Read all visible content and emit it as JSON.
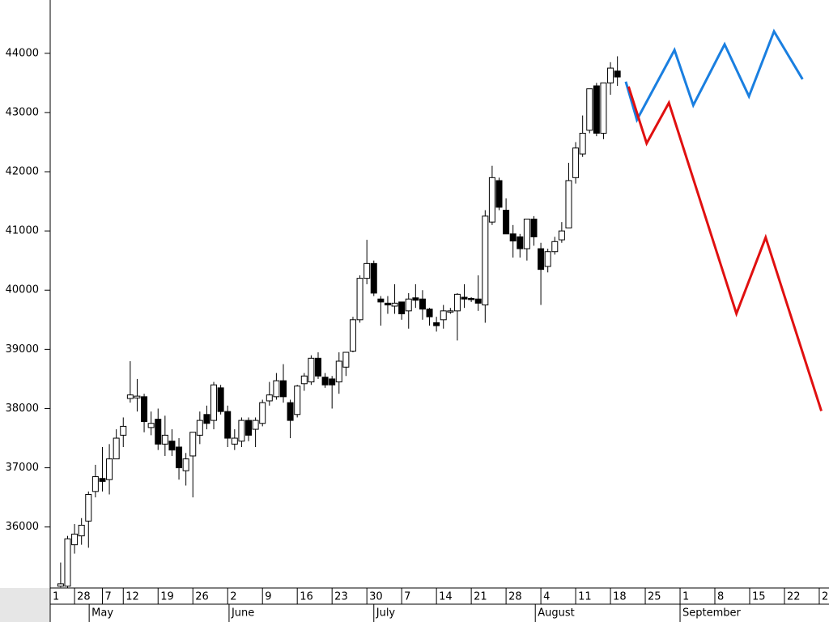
{
  "chart_data": {
    "type": "candlestick",
    "ylim": [
      34970,
      44900
    ],
    "yticks": [
      36000,
      37000,
      38000,
      39000,
      40000,
      41000,
      42000,
      43000,
      44000
    ],
    "xlim": [
      -0.5,
      111.4
    ],
    "xticks": [
      {
        "value": -0.5,
        "label": "1"
      },
      {
        "value": 3,
        "label": "28"
      },
      {
        "value": 7,
        "label": "7"
      },
      {
        "value": 10,
        "label": "12"
      },
      {
        "value": 15,
        "label": "19"
      },
      {
        "value": 20,
        "label": "26"
      },
      {
        "value": 25,
        "label": "2"
      },
      {
        "value": 30,
        "label": "9"
      },
      {
        "value": 35,
        "label": "16"
      },
      {
        "value": 40,
        "label": "23"
      },
      {
        "value": 45,
        "label": "30"
      },
      {
        "value": 50,
        "label": "7"
      },
      {
        "value": 55,
        "label": "14"
      },
      {
        "value": 60,
        "label": "21"
      },
      {
        "value": 65,
        "label": "28"
      },
      {
        "value": 70,
        "label": "4"
      },
      {
        "value": 75,
        "label": "11"
      },
      {
        "value": 80,
        "label": "18"
      },
      {
        "value": 85,
        "label": "25"
      },
      {
        "value": 90,
        "label": "1"
      },
      {
        "value": 95,
        "label": "8"
      },
      {
        "value": 100,
        "label": "15"
      },
      {
        "value": 105,
        "label": "22"
      },
      {
        "value": 110,
        "label": "2"
      }
    ],
    "months": [
      {
        "value": 5.1,
        "label": "May"
      },
      {
        "value": 25.2,
        "label": "June"
      },
      {
        "value": 46,
        "label": "July"
      },
      {
        "value": 69.2,
        "label": "August"
      },
      {
        "value": 90,
        "label": "September"
      }
    ],
    "candles": {
      "color": "#000000",
      "x": [
        1,
        2,
        3,
        4,
        5,
        6,
        7,
        8,
        9,
        10,
        11,
        12,
        13,
        14,
        15,
        16,
        17,
        18,
        19,
        20,
        21,
        22,
        23,
        24,
        25,
        26,
        27,
        28,
        29,
        30,
        31,
        32,
        33,
        34,
        35,
        36,
        37,
        38,
        39,
        40,
        41,
        42,
        43,
        44,
        45,
        46,
        47,
        48,
        49,
        50,
        51,
        52,
        53,
        54,
        55,
        56,
        57,
        58,
        59,
        60,
        61,
        62,
        63,
        64,
        65,
        66,
        67,
        68,
        69,
        70,
        71,
        72,
        73,
        74,
        75,
        76,
        77,
        78,
        79,
        80,
        81
      ],
      "open": [
        35000,
        35000,
        35700,
        35850,
        36100,
        36600,
        36820,
        36800,
        37150,
        37550,
        38170,
        38180,
        38200,
        37680,
        37820,
        37400,
        37450,
        37350,
        36950,
        37200,
        37550,
        37900,
        37800,
        38350,
        37950,
        37400,
        37450,
        37800,
        37650,
        37750,
        38130,
        38200,
        38470,
        38100,
        37900,
        38420,
        38450,
        38850,
        38530,
        38500,
        38450,
        38700,
        38970,
        39500,
        40200,
        40450,
        39850,
        39780,
        39730,
        39800,
        39650,
        39870,
        39850,
        39680,
        39450,
        39500,
        39630,
        39650,
        39880,
        39860,
        39850,
        39750,
        41150,
        41850,
        41350,
        40950,
        40900,
        40700,
        41200,
        40700,
        40400,
        40650,
        40850,
        41050,
        41900,
        42300,
        42700,
        43450,
        42650,
        43500,
        43700
      ],
      "high": [
        35400,
        35850,
        36050,
        36150,
        36600,
        37050,
        37350,
        37400,
        37650,
        37850,
        38800,
        38500,
        38250,
        37950,
        38000,
        37880,
        37650,
        37500,
        37250,
        37600,
        37950,
        38050,
        38450,
        38400,
        38050,
        37650,
        37850,
        37850,
        37850,
        38150,
        38450,
        38600,
        38750,
        38150,
        38400,
        38600,
        38900,
        38950,
        38600,
        38550,
        38950,
        38950,
        39550,
        40250,
        40850,
        40500,
        39900,
        39900,
        40100,
        39800,
        39950,
        40100,
        40000,
        39700,
        39550,
        39750,
        39700,
        39950,
        40100,
        39880,
        40250,
        41350,
        42100,
        41900,
        41550,
        41100,
        40950,
        41200,
        41250,
        40800,
        40700,
        40900,
        41150,
        42150,
        42500,
        42950,
        43400,
        43500,
        43500,
        43850,
        43950
      ],
      "low": [
        34980,
        34970,
        35550,
        35700,
        35650,
        36500,
        36600,
        36550,
        37150,
        37350,
        38100,
        37950,
        37600,
        37550,
        37300,
        37200,
        37200,
        36800,
        36700,
        36500,
        37400,
        37650,
        37650,
        37900,
        37350,
        37300,
        37350,
        37450,
        37350,
        37700,
        38050,
        38150,
        38100,
        37500,
        37850,
        38300,
        38400,
        38500,
        38350,
        38000,
        38250,
        38550,
        38950,
        39450,
        40100,
        39900,
        39400,
        39600,
        39600,
        39500,
        39350,
        39700,
        39500,
        39400,
        39300,
        39350,
        39600,
        39150,
        39700,
        39800,
        39650,
        39450,
        41100,
        41350,
        40950,
        40550,
        40550,
        40500,
        40750,
        39750,
        40300,
        40600,
        40800,
        41050,
        41800,
        42250,
        42650,
        42600,
        42550,
        43300,
        43450
      ],
      "close": [
        35040,
        35800,
        35880,
        36030,
        36550,
        36850,
        36770,
        37150,
        37500,
        37700,
        38230,
        38210,
        37780,
        37750,
        37400,
        37550,
        37300,
        37000,
        37150,
        37600,
        37800,
        37750,
        38400,
        37950,
        37500,
        37500,
        37800,
        37550,
        37800,
        38100,
        38230,
        38470,
        38200,
        37800,
        38380,
        38550,
        38850,
        38550,
        38400,
        38400,
        38800,
        38950,
        39500,
        40200,
        40450,
        39950,
        39800,
        39750,
        39780,
        39600,
        39850,
        39830,
        39680,
        39550,
        39400,
        39650,
        39650,
        39930,
        39850,
        39840,
        39780,
        41250,
        41900,
        41400,
        40950,
        40830,
        40700,
        41200,
        40900,
        40350,
        40650,
        40820,
        41000,
        41850,
        42400,
        42650,
        43400,
        42650,
        43500,
        43750,
        43600
      ]
    },
    "series": [
      {
        "color": "#1a7fe0",
        "x": [
          82.2,
          83.8,
          89.2,
          91.9,
          96.4,
          99.9,
          103.5,
          107.6
        ],
        "values": [
          43521,
          42877,
          44055,
          43123,
          44151,
          43274,
          44370,
          43562
        ]
      },
      {
        "color": "#e01010",
        "x": [
          82.6,
          85.2,
          88.4,
          98.1,
          102.3,
          110.3
        ],
        "values": [
          43438,
          42479,
          43164,
          39603,
          40890,
          37959
        ]
      }
    ]
  }
}
